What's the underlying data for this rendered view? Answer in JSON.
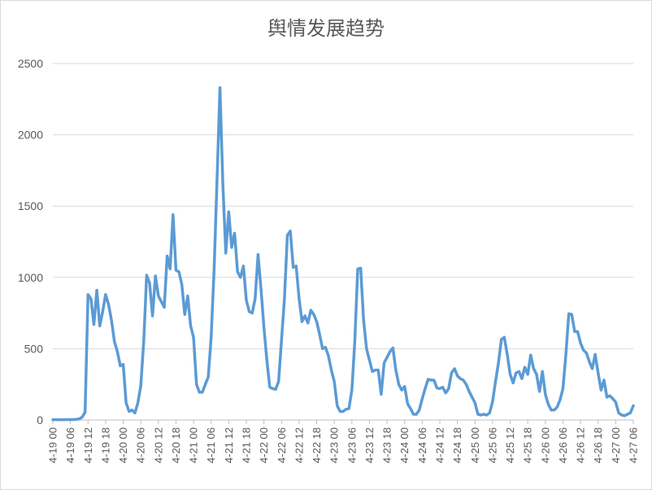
{
  "chart_data": {
    "type": "line",
    "title": "舆情发展趋势",
    "xlabel": "",
    "ylabel": "",
    "ylim": [
      0,
      2500
    ],
    "yticks": [
      0,
      500,
      1000,
      1500,
      2000,
      2500
    ],
    "grid": true,
    "legend": "none",
    "color": "#5b9bd5",
    "x_labels": [
      "4-19 00",
      "4-19 06",
      "4-19 12",
      "4-19 18",
      "4-20 00",
      "4-20 06",
      "4-20 12",
      "4-20 18",
      "4-21 00",
      "4-21 06",
      "4-21 12",
      "4-21 18",
      "4-22 00",
      "4-22 06",
      "4-22 12",
      "4-22 18",
      "4-23 00",
      "4-23 06",
      "4-23 12",
      "4-23 18",
      "4-24 00",
      "4-24 06",
      "4-24 12",
      "4-24 18",
      "4-25 00",
      "4-25 06",
      "4-25 12",
      "4-25 18",
      "4-26 00",
      "4-26 06",
      "4-26 12",
      "4-26 18",
      "4-27 00",
      "4-27 06"
    ],
    "x_points_per_label": 6,
    "series": [
      {
        "values": [
          2,
          2,
          2,
          2,
          2,
          3,
          3,
          3,
          5,
          8,
          20,
          55,
          880,
          850,
          670,
          910,
          660,
          760,
          880,
          810,
          700,
          550,
          480,
          380,
          390,
          120,
          60,
          70,
          50,
          120,
          240,
          550,
          1015,
          960,
          730,
          1010,
          870,
          830,
          790,
          1150,
          1060,
          1440,
          1050,
          1040,
          950,
          740,
          870,
          660,
          580,
          250,
          195,
          195,
          250,
          300,
          580,
          1050,
          1680,
          2330,
          1650,
          1170,
          1460,
          1210,
          1310,
          1040,
          1000,
          1080,
          840,
          760,
          750,
          850,
          1160,
          920,
          650,
          420,
          230,
          220,
          215,
          270,
          560,
          850,
          1295,
          1325,
          1070,
          1080,
          850,
          690,
          730,
          680,
          770,
          740,
          690,
          600,
          500,
          510,
          450,
          350,
          270,
          100,
          60,
          60,
          75,
          80,
          210,
          550,
          1060,
          1065,
          700,
          500,
          420,
          340,
          350,
          350,
          180,
          400,
          440,
          480,
          505,
          350,
          250,
          210,
          235,
          115,
          80,
          40,
          40,
          70,
          150,
          220,
          285,
          280,
          280,
          225,
          220,
          230,
          190,
          220,
          330,
          360,
          310,
          290,
          280,
          250,
          200,
          160,
          120,
          40,
          35,
          40,
          35,
          50,
          130,
          270,
          400,
          565,
          580,
          460,
          320,
          260,
          330,
          340,
          290,
          370,
          320,
          455,
          360,
          320,
          200,
          340,
          180,
          110,
          70,
          70,
          90,
          140,
          220,
          460,
          745,
          740,
          620,
          620,
          540,
          490,
          470,
          410,
          360,
          460,
          330,
          210,
          280,
          160,
          170,
          150,
          125,
          50,
          35,
          30,
          40,
          50,
          100
        ]
      }
    ]
  }
}
